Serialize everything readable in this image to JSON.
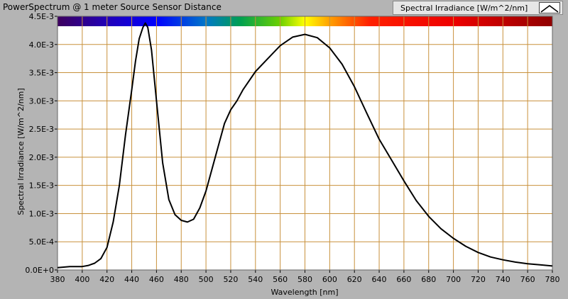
{
  "window": {
    "title": "PowerSpectrum @ 1 meter Source Sensor Distance"
  },
  "legend": {
    "label": "Spectral Irradiance [W/m^2/nm]",
    "icon": "line-sample-icon"
  },
  "colors": {
    "plot_bg": "#ffffff",
    "grid": "#c8913c",
    "trace": "#000000",
    "chrome": "#b4b4b4"
  },
  "chart_data": {
    "type": "line",
    "title": "PowerSpectrum @ 1 meter Source Sensor Distance",
    "xlabel": "Wavelength [nm]",
    "ylabel": "Spectral Irradiance [W/m^2/nm]",
    "xlim": [
      380,
      780
    ],
    "ylim": [
      0,
      0.0045
    ],
    "grid": true,
    "legend_position": "top-right",
    "color_bar": "visible-spectrum",
    "x_ticks": [
      380,
      400,
      420,
      440,
      460,
      480,
      500,
      520,
      540,
      560,
      580,
      600,
      620,
      640,
      660,
      680,
      700,
      720,
      740,
      760,
      780
    ],
    "x_tick_labels": [
      "380",
      "400",
      "420",
      "440",
      "460",
      "480",
      "500",
      "520",
      "540",
      "560",
      "580",
      "600",
      "620",
      "640",
      "660",
      "680",
      "700",
      "720",
      "740",
      "760",
      "780"
    ],
    "y_ticks": [
      0,
      0.0005,
      0.001,
      0.0015,
      0.002,
      0.0025,
      0.003,
      0.0035,
      0.004,
      0.0045
    ],
    "y_tick_labels": [
      "0.0E+0",
      "5.0E-4",
      "1.0E-3",
      "1.5E-3",
      "2.0E-3",
      "2.5E-3",
      "3.0E-3",
      "3.5E-3",
      "4.0E-3",
      "4.5E-3"
    ],
    "series": [
      {
        "name": "Spectral Irradiance [W/m^2/nm]",
        "x": [
          380,
          385,
          390,
          395,
          400,
          405,
          410,
          415,
          420,
          425,
          430,
          435,
          440,
          443,
          446,
          449,
          451,
          453,
          456,
          460,
          465,
          470,
          475,
          480,
          485,
          490,
          495,
          500,
          505,
          510,
          515,
          520,
          525,
          530,
          540,
          550,
          560,
          570,
          580,
          590,
          600,
          610,
          620,
          630,
          640,
          650,
          660,
          670,
          680,
          690,
          700,
          710,
          720,
          730,
          740,
          750,
          760,
          770,
          780
        ],
        "y": [
          4e-05,
          5e-05,
          6e-05,
          6e-05,
          6e-05,
          8e-05,
          0.00012,
          0.0002,
          0.0004,
          0.00085,
          0.0015,
          0.0024,
          0.0032,
          0.0037,
          0.0041,
          0.0043,
          0.00438,
          0.0043,
          0.0039,
          0.003,
          0.0019,
          0.00125,
          0.00098,
          0.00088,
          0.00085,
          0.0009,
          0.0011,
          0.0014,
          0.0018,
          0.0022,
          0.0026,
          0.00284,
          0.003,
          0.0032,
          0.00352,
          0.00375,
          0.00398,
          0.00413,
          0.00418,
          0.00412,
          0.00394,
          0.00365,
          0.00325,
          0.00278,
          0.00232,
          0.00195,
          0.00158,
          0.00123,
          0.00095,
          0.00073,
          0.00056,
          0.00042,
          0.00031,
          0.00023,
          0.00018,
          0.00014,
          0.00011,
          9e-05,
          7e-05
        ]
      }
    ]
  }
}
